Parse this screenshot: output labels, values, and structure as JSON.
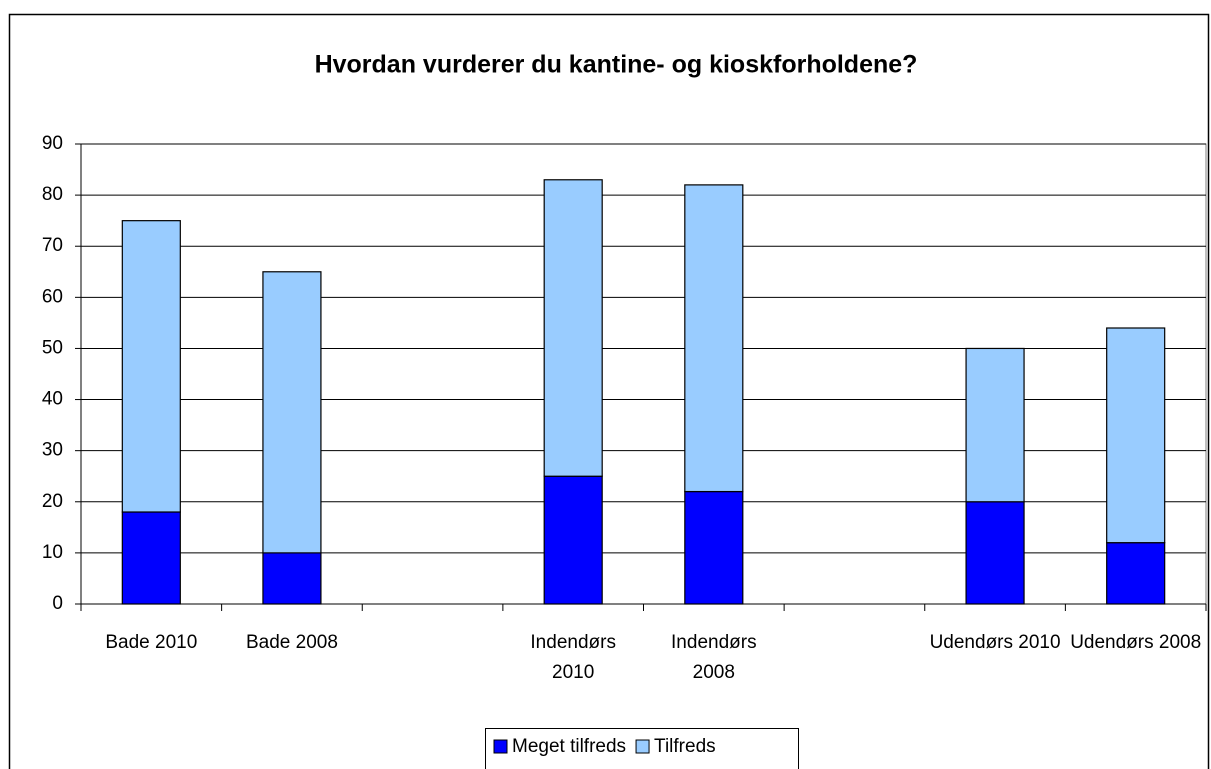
{
  "chart_data": {
    "type": "stacked_bar",
    "title": "Hvordan vurderer du kantine- og kioskforholdene?",
    "categories": [
      "Bade 2010",
      "Bade 2008",
      null,
      "Indendørs 2010",
      "Indendørs 2008",
      null,
      "Udendørs 2010",
      "Udendørs 2008"
    ],
    "series": [
      {
        "name": "Meget tilfreds",
        "color": "#0000ff",
        "values": [
          18,
          10,
          null,
          25,
          22,
          null,
          20,
          12
        ]
      },
      {
        "name": "Tilfreds",
        "color": "#99ccff",
        "values": [
          57,
          55,
          null,
          58,
          60,
          null,
          30,
          42
        ]
      }
    ],
    "ylim": [
      0,
      90
    ],
    "yticks": [
      0,
      10,
      20,
      30,
      40,
      50,
      60,
      70,
      80,
      90
    ],
    "grid": true,
    "legend": "bottom"
  }
}
